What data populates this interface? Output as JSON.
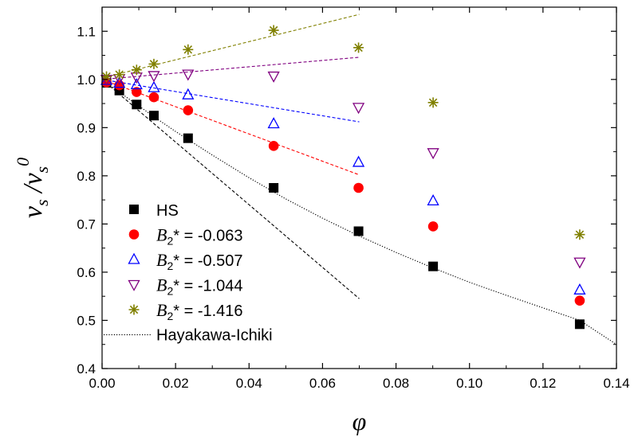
{
  "chart_data": {
    "type": "scatter",
    "xlabel": "φ",
    "ylabel": {
      "main": "v",
      "sub": "s",
      "sep": " /",
      "main2": "v",
      "sub2": "s",
      "sup2": "0"
    },
    "xlim": [
      0.0,
      0.14
    ],
    "ylim": [
      0.4,
      1.15
    ],
    "x_ticks": [
      "0.00",
      "0.02",
      "0.04",
      "0.06",
      "0.08",
      "0.10",
      "0.12",
      "0.14"
    ],
    "y_ticks": [
      "0.4",
      "0.5",
      "0.6",
      "0.7",
      "0.8",
      "0.9",
      "1.0",
      "1.1"
    ],
    "x_tick_values": [
      0.0,
      0.02,
      0.04,
      0.06,
      0.08,
      0.1,
      0.12,
      0.14
    ],
    "y_tick_values": [
      0.4,
      0.5,
      0.6,
      0.7,
      0.8,
      0.9,
      1.0,
      1.1
    ],
    "legend_position": "lower-left",
    "x": [
      0.0012,
      0.0047,
      0.0094,
      0.0141,
      0.0234,
      0.0467,
      0.0698,
      0.0901,
      0.13
    ],
    "series": [
      {
        "name": "HS",
        "marker": "square",
        "color": "#000000",
        "values": [
          0.993,
          0.977,
          0.948,
          0.925,
          0.878,
          0.775,
          0.685,
          0.612,
          0.492
        ]
      },
      {
        "name": "B2* = -0.063",
        "label_main": "B",
        "label_sub": "2",
        "label_rest": "* = -0.063",
        "marker": "circle",
        "color": "#ff0000",
        "values": [
          0.994,
          0.988,
          0.974,
          0.963,
          0.936,
          0.862,
          0.775,
          0.695,
          0.541
        ]
      },
      {
        "name": "B2* = -0.507",
        "label_main": "B",
        "label_sub": "2",
        "label_rest": "* = -0.507",
        "marker": "triangle-up",
        "color": "#0000ff",
        "values": [
          0.998,
          0.992,
          0.989,
          0.983,
          0.968,
          0.908,
          0.828,
          0.748,
          0.563
        ]
      },
      {
        "name": "B2* = -1.044",
        "label_main": "B",
        "label_sub": "2",
        "label_rest": "* = -1.044",
        "marker": "triangle-down",
        "color": "#800080",
        "values": [
          1.0,
          1.002,
          1.005,
          1.008,
          1.011,
          1.007,
          0.942,
          0.848,
          0.621
        ]
      },
      {
        "name": "B2* = -1.416",
        "label_main": "B",
        "label_sub": "2",
        "label_rest": "* = -1.416",
        "marker": "star",
        "color": "#808000",
        "values": [
          1.006,
          1.01,
          1.02,
          1.032,
          1.062,
          1.102,
          1.066,
          0.952,
          0.678
        ]
      }
    ],
    "fit_lines": [
      {
        "color": "#808000",
        "x": [
          0.0,
          0.07
        ],
        "y": [
          1.003,
          1.135
        ]
      },
      {
        "color": "#800080",
        "x": [
          0.0,
          0.07
        ],
        "y": [
          1.0,
          1.046
        ]
      },
      {
        "color": "#0000ff",
        "x": [
          0.0,
          0.07
        ],
        "y": [
          1.0,
          0.912
        ]
      },
      {
        "color": "#ff0000",
        "x": [
          0.0,
          0.07
        ],
        "y": [
          1.0,
          0.802
        ]
      },
      {
        "color": "#000000",
        "x": [
          0.0,
          0.07
        ],
        "y": [
          1.0,
          0.545
        ]
      }
    ],
    "hayakawa_ichiki": {
      "name": "Hayakawa-Ichiki",
      "color": "#000000",
      "x": [
        0.0,
        0.005,
        0.01,
        0.015,
        0.02,
        0.03,
        0.04,
        0.05,
        0.06,
        0.07,
        0.08,
        0.09,
        0.1,
        0.11,
        0.12,
        0.13,
        0.14
      ],
      "y": [
        1.0,
        0.972,
        0.945,
        0.918,
        0.892,
        0.843,
        0.796,
        0.752,
        0.712,
        0.675,
        0.641,
        0.609,
        0.579,
        0.552,
        0.526,
        0.5,
        0.45
      ]
    }
  }
}
